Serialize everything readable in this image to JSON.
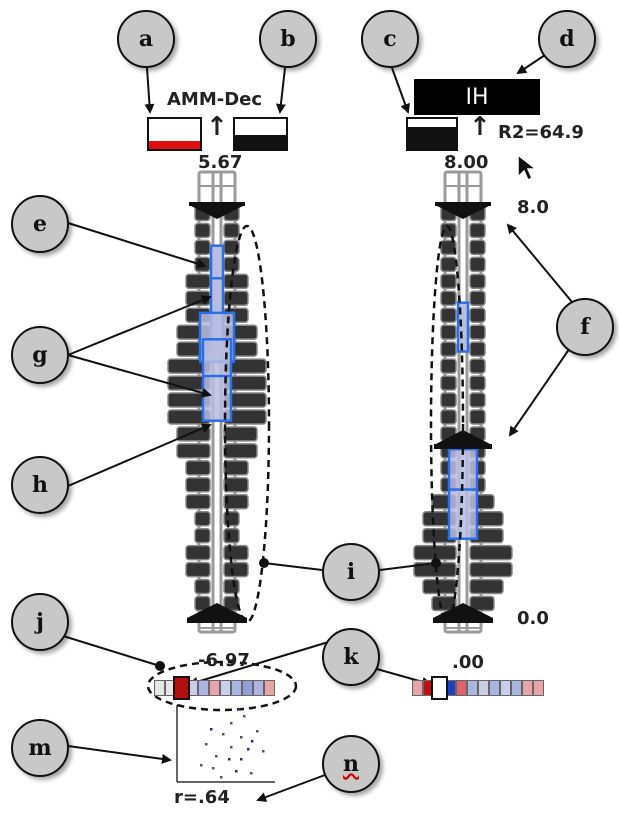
{
  "left_axis": {
    "title": "AMM-Dec",
    "top_value": "5.67",
    "bottom_value": "-6.97",
    "correlation": "r=.64",
    "histogram_bins": [
      1,
      1,
      1,
      1,
      2,
      2,
      2,
      3,
      3,
      4,
      4,
      4,
      4,
      3,
      3,
      2,
      2,
      2,
      1,
      1,
      2,
      2,
      1,
      1
    ],
    "box_upper": {
      "lo": 0.1,
      "hi": 0.35
    },
    "box_lower": {
      "lo": 0.33,
      "hi": 0.53
    }
  },
  "right_axis": {
    "title": "IH",
    "top_value": "8.00",
    "bottom_value": ".00",
    "r2_label": "R2=64.9",
    "scale_top": "8.0",
    "scale_bottom": "0.0",
    "histogram_bins": [
      1,
      1,
      1,
      1,
      1,
      1,
      1,
      1,
      1,
      1,
      1,
      1,
      1,
      1,
      1,
      1,
      1,
      2,
      3,
      3,
      4,
      4,
      3,
      2
    ],
    "box_upper": {
      "lo": 0.24,
      "hi": 0.36
    },
    "box_lower": {
      "lo": 0.6,
      "hi": 0.82
    }
  },
  "callouts": [
    "a",
    "b",
    "c",
    "d",
    "e",
    "f",
    "g",
    "h",
    "i",
    "j",
    "k",
    "m",
    "n"
  ],
  "colors": {
    "blue": "#2a6ee8",
    "box_fill": "#b8bde0",
    "red": "#e01010",
    "dark_red": "#b01010",
    "callout_fill": "#c8c8c8"
  },
  "left_color_strip": [
    "#e6e6e6",
    "#e6e6e6",
    "#b01010",
    "#c8cde8",
    "#a9b4e0",
    "#e8a4a8",
    "#c8cde8",
    "#a9b4e0",
    "#8fa0dc",
    "#a9b4e0",
    "#e8a4a8"
  ],
  "right_color_strip": [
    "#e8a4a8",
    "#c01010",
    "#ffffff",
    "#2040c0",
    "#e06070",
    "#a9b4e0",
    "#c8cde8",
    "#a9b4e0",
    "#c8cde8",
    "#a9b4e0",
    "#e8a4a8",
    "#e8a4a8"
  ]
}
